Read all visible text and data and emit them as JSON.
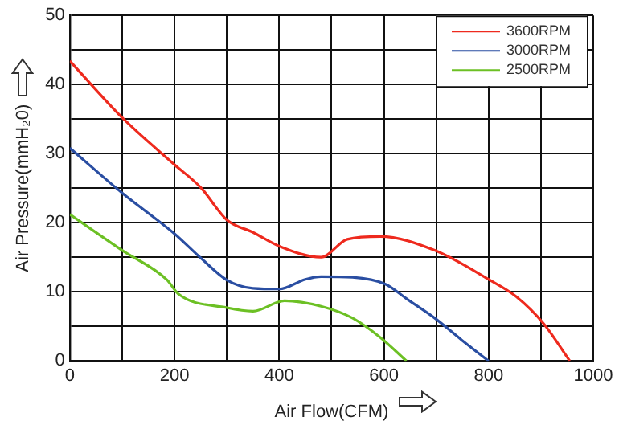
{
  "chart_data": {
    "type": "line",
    "xlabel": "Air Flow(CFM)",
    "ylabel": "Air Pressure(mmH₂0)",
    "xlim": [
      0,
      1000
    ],
    "ylim": [
      0,
      50
    ],
    "xticks": [
      0,
      {
        "value": 100,
        "label": null
      },
      200,
      {
        "value": 300,
        "label": null
      },
      400,
      {
        "value": 500,
        "label": null
      },
      600,
      {
        "value": 700,
        "label": null
      },
      800,
      {
        "value": 900,
        "label": null
      },
      1000
    ],
    "yticks": [
      0,
      {
        "value": 5,
        "label": null
      },
      10,
      {
        "value": 15,
        "label": null
      },
      20,
      {
        "value": 25,
        "label": null
      },
      30,
      {
        "value": 35,
        "label": null
      },
      40,
      {
        "value": 45,
        "label": null
      },
      50
    ],
    "grid": true,
    "legend": "top right",
    "marker": "none",
    "line_style": "solid",
    "series": [
      {
        "name": "3600RPM",
        "color": "#ee2a1e",
        "x": [
          0,
          100,
          200,
          250,
          300,
          350,
          400,
          480,
          530,
          593,
          697,
          800,
          853,
          905,
          955
        ],
        "values": [
          43.4,
          35.2,
          28.4,
          25.1,
          20.4,
          18.6,
          16.6,
          15.0,
          17.6,
          18.0,
          16.0,
          11.8,
          9.3,
          5.4,
          0
        ]
      },
      {
        "name": "3000RPM",
        "color": "#2a4ea2",
        "x": [
          0,
          100,
          200,
          250,
          300,
          350,
          400,
          450,
          480,
          540,
          603,
          645,
          697,
          749,
          800
        ],
        "values": [
          30.8,
          24.3,
          18.4,
          14.9,
          11.7,
          10.5,
          10.4,
          11.8,
          12.2,
          12.1,
          11.1,
          8.9,
          6.2,
          3.0,
          0
        ]
      },
      {
        "name": "2500RPM",
        "color": "#6cc024",
        "x": [
          0,
          100,
          186,
          207,
          300,
          350,
          410,
          480,
          540,
          593,
          643
        ],
        "values": [
          21.2,
          16.0,
          11.7,
          9.7,
          7.7,
          7.2,
          8.7,
          7.9,
          6.2,
          3.4,
          0
        ]
      }
    ]
  }
}
